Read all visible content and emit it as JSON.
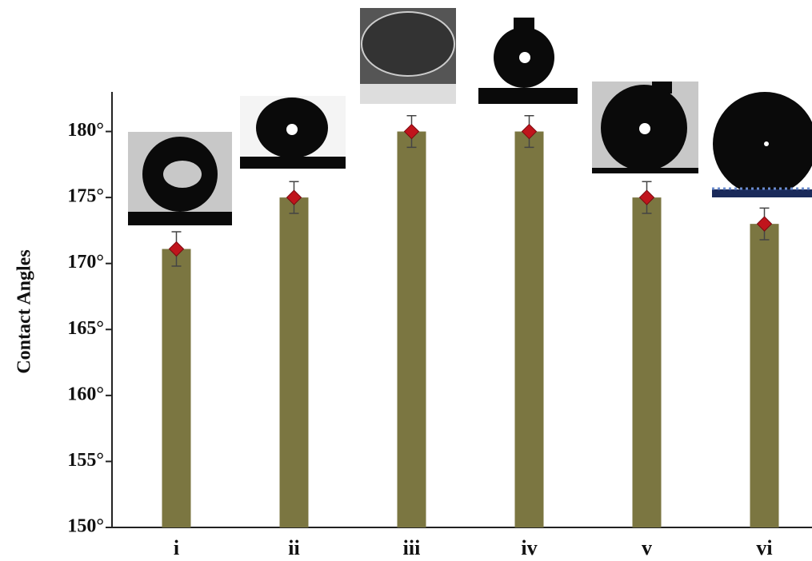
{
  "chart_data": {
    "type": "bar",
    "y_label": "Contact Angles",
    "categories": [
      "i",
      "ii",
      "iii",
      "iv",
      "v",
      "vi"
    ],
    "values": [
      171.1,
      175,
      180,
      180,
      175,
      173
    ],
    "errors": [
      1.3,
      1.2,
      1.2,
      1.2,
      1.2,
      1.2
    ],
    "color": "#7b7641",
    "marker_color": "#c0141c",
    "ylim": [
      150,
      183
    ],
    "yticks": [
      {
        "value": 150,
        "label": "150°"
      },
      {
        "value": 155,
        "label": "155°"
      },
      {
        "value": 160,
        "label": "160°"
      },
      {
        "value": 165,
        "label": "165°"
      },
      {
        "value": 170,
        "label": "170°"
      },
      {
        "value": 175,
        "label": "175°"
      },
      {
        "value": 180,
        "label": "180°"
      }
    ]
  }
}
